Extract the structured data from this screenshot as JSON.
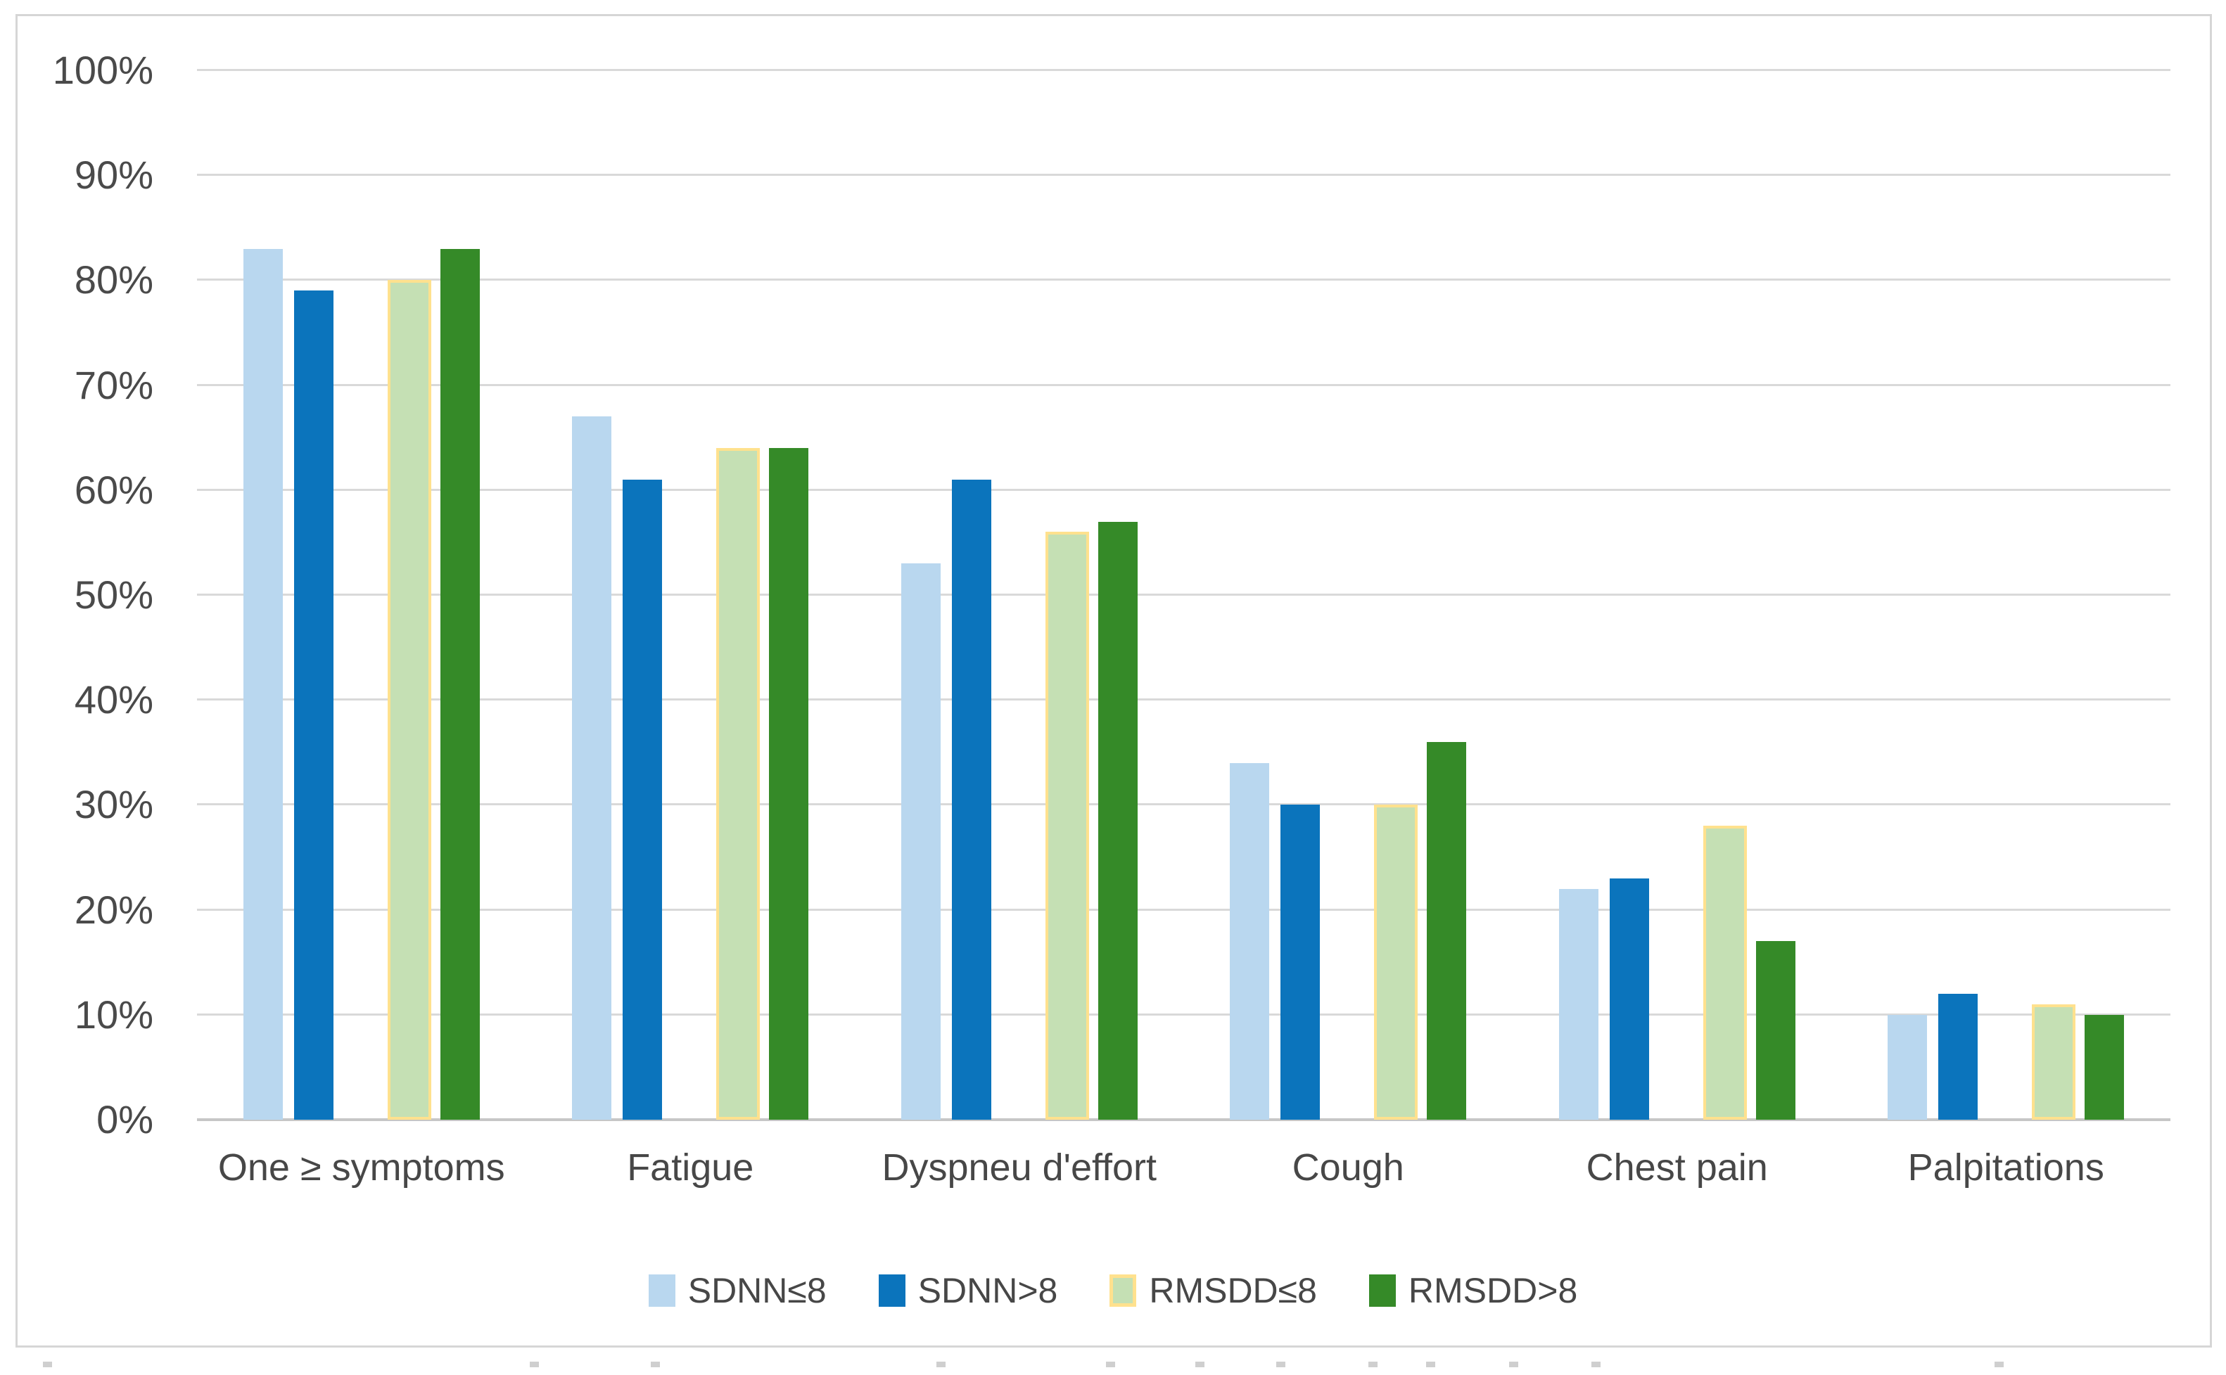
{
  "chart_data": {
    "type": "bar",
    "title": "",
    "xlabel": "",
    "ylabel": "",
    "categories": [
      "One ≥ symptoms",
      "Fatigue",
      "Dyspneu d'effort",
      "Cough",
      "Chest pain",
      "Palpitations"
    ],
    "series": [
      {
        "name": "SDNN≤8",
        "color": "#b9d7ef",
        "values": [
          83,
          67,
          53,
          34,
          22,
          10
        ]
      },
      {
        "name": "SDNN>8",
        "color": "#0b74bc",
        "values": [
          79,
          61,
          61,
          30,
          23,
          12
        ]
      },
      {
        "name": "RMSDD≤8",
        "color": "#c5e0b4",
        "border_color": "#ffe18e",
        "values": [
          80,
          64,
          56,
          30,
          28,
          11
        ]
      },
      {
        "name": "RMSDD>8",
        "color": "#358a28",
        "values": [
          83,
          64,
          57,
          36,
          17,
          10
        ]
      }
    ],
    "ylim": [
      0,
      100
    ],
    "ytick_step": 10,
    "ytick_labels": [
      "0%",
      "10%",
      "20%",
      "30%",
      "40%",
      "50%",
      "60%",
      "70%",
      "80%",
      "90%",
      "100%"
    ],
    "grid": true,
    "legend_position": "bottom",
    "legend_entries": [
      "SDNN≤8",
      "SDNN>8",
      "RMSDD≤8",
      "RMSDD>8"
    ]
  },
  "colors": {
    "background": "#ffffff",
    "frame_border": "#d6d6d6",
    "gridline": "#d9d9d9",
    "axis_line": "#c6c6c6",
    "tick_text": "#4a4a4a",
    "category_text": "#474747"
  }
}
